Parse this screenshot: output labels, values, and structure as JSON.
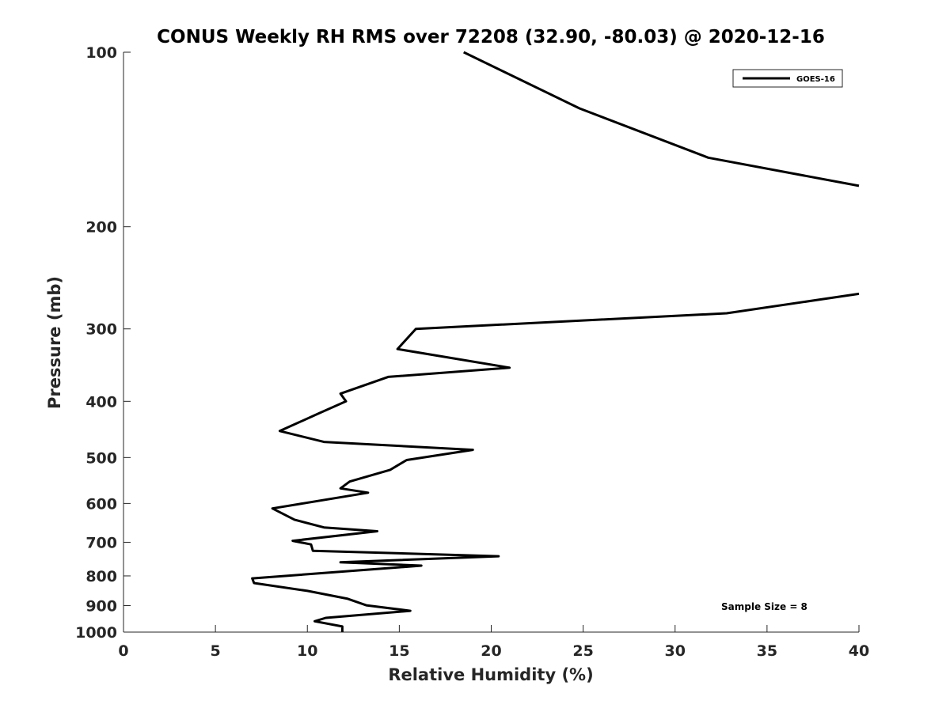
{
  "chart_data": {
    "type": "line",
    "title": "CONUS Weekly RH RMS over 72208 (32.90, -80.03) @ 2020-12-16",
    "xlabel": "Relative Humidity (%)",
    "ylabel": "Pressure (mb)",
    "xlim": [
      0,
      40
    ],
    "ylim": [
      1000,
      100
    ],
    "yscale": "log",
    "xticks": [
      "0",
      "5",
      "10",
      "15",
      "20",
      "25",
      "30",
      "35",
      "40"
    ],
    "yticks": [
      "100",
      "200",
      "300",
      "400",
      "500",
      "600",
      "700",
      "800",
      "900",
      "1000"
    ],
    "grid": false,
    "legend": {
      "position": "top-right",
      "entries": [
        "GOES-16"
      ]
    },
    "annotation": "Sample Size = 8",
    "series": [
      {
        "name": "GOES-16",
        "color": "#000000",
        "segments": [
          [
            [
              18.5,
              100
            ],
            [
              24.8,
              125
            ],
            [
              31.8,
              152
            ],
            [
              40.0,
              170
            ]
          ],
          [
            [
              40.0,
              261
            ],
            [
              32.8,
              282
            ],
            [
              15.9,
              300
            ],
            [
              14.9,
              325
            ],
            [
              21.0,
              350
            ],
            [
              14.4,
              363
            ],
            [
              11.8,
              388
            ],
            [
              12.1,
              400
            ],
            [
              10.6,
              420
            ],
            [
              8.5,
              450
            ],
            [
              10.9,
              470
            ],
            [
              19.0,
              485
            ],
            [
              15.4,
              505
            ],
            [
              14.5,
              525
            ],
            [
              12.3,
              550
            ],
            [
              11.8,
              565
            ],
            [
              13.3,
              575
            ],
            [
              8.1,
              612
            ],
            [
              9.3,
              640
            ],
            [
              10.9,
              660
            ],
            [
              13.8,
              670
            ],
            [
              9.2,
              696
            ],
            [
              10.2,
              706
            ],
            [
              10.3,
              724
            ],
            [
              20.4,
              740
            ],
            [
              11.8,
              758
            ],
            [
              16.2,
              768
            ],
            [
              13.2,
              781
            ],
            [
              7.0,
              808
            ],
            [
              7.1,
              823
            ],
            [
              10.0,
              849
            ],
            [
              12.2,
              876
            ],
            [
              13.2,
              899
            ],
            [
              15.6,
              919
            ],
            [
              11.0,
              945
            ],
            [
              10.4,
              958
            ],
            [
              11.9,
              978
            ],
            [
              11.9,
              1000
            ]
          ]
        ]
      }
    ]
  }
}
